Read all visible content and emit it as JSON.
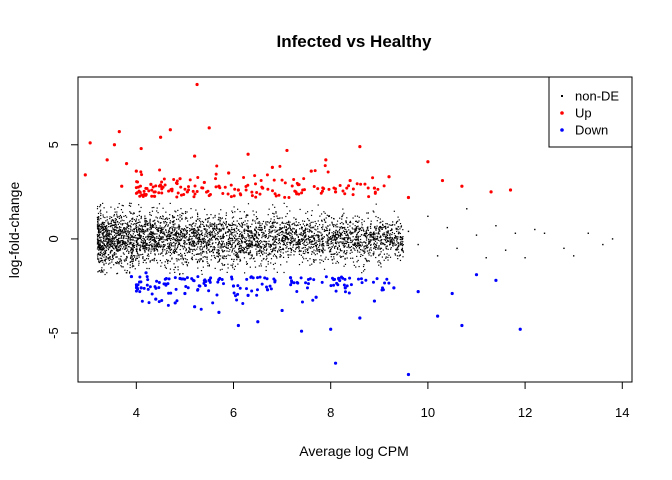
{
  "chart_data": {
    "type": "scatter",
    "title": "Infected vs Healthy",
    "xlabel": "Average log CPM",
    "ylabel": "log-fold-change",
    "xlim": [
      2.8,
      14.2
    ],
    "ylim": [
      -7.6,
      8.6
    ],
    "x_ticks": [
      4,
      6,
      8,
      10,
      12,
      14
    ],
    "y_ticks": [
      -5,
      0,
      5
    ],
    "grid": false,
    "legend_position": "top-right",
    "legend": [
      {
        "label": "non-DE",
        "color": "#000000"
      },
      {
        "label": "Up",
        "color": "#ff0000"
      },
      {
        "label": "Down",
        "color": "#0000ff"
      }
    ],
    "series": [
      {
        "name": "non-DE",
        "color": "#000000",
        "cloud": {
          "x_range": [
            3.2,
            9.5
          ],
          "y_sd": 0.55,
          "y_sd_low_x": 0.75
        },
        "x": [
          3.3,
          3.5,
          3.6,
          9.6,
          9.8,
          10.0,
          10.2,
          10.4,
          10.6,
          10.8,
          11.0,
          11.2,
          11.4,
          11.6,
          11.8,
          12.0,
          12.2,
          12.4,
          12.8,
          13.0,
          13.3,
          13.6,
          13.8
        ],
        "y": [
          -0.9,
          -1.1,
          -1.3,
          0.4,
          -0.3,
          1.2,
          -0.9,
          0.6,
          -0.5,
          1.6,
          0.2,
          -1.0,
          0.7,
          -0.6,
          0.3,
          -1.0,
          0.5,
          0.3,
          -0.5,
          -0.9,
          0.3,
          -0.3,
          0.0
        ]
      },
      {
        "name": "Up",
        "color": "#ff0000",
        "x": [
          2.95,
          3.05,
          3.4,
          3.55,
          3.65,
          3.7,
          3.8,
          4.0,
          4.1,
          4.3,
          4.5,
          4.7,
          4.9,
          5.05,
          5.2,
          5.25,
          5.4,
          5.5,
          5.7,
          5.9,
          6.1,
          6.3,
          6.6,
          6.8,
          7.1,
          7.3,
          7.6,
          7.9,
          8.1,
          8.4,
          8.6,
          8.9,
          9.2,
          9.6,
          10.0,
          10.3,
          10.7,
          11.3,
          11.7
        ],
        "y": [
          3.4,
          5.1,
          4.2,
          5.0,
          5.7,
          2.8,
          4.0,
          3.6,
          4.8,
          2.9,
          5.4,
          5.8,
          3.2,
          2.5,
          4.4,
          8.2,
          3.0,
          5.9,
          2.8,
          3.5,
          2.6,
          4.5,
          2.7,
          3.8,
          4.7,
          2.4,
          3.6,
          4.2,
          2.5,
          3.1,
          4.9,
          2.7,
          3.3,
          2.2,
          4.1,
          3.1,
          2.8,
          2.5,
          2.6
        ]
      },
      {
        "name": "Down",
        "color": "#0000ff",
        "x": [
          3.9,
          4.1,
          4.2,
          4.4,
          4.6,
          4.8,
          4.9,
          5.0,
          5.2,
          5.5,
          5.7,
          6.0,
          6.1,
          6.3,
          6.5,
          6.7,
          7.0,
          7.2,
          7.4,
          7.7,
          8.0,
          8.1,
          8.3,
          8.6,
          8.9,
          9.3,
          9.6,
          9.8,
          10.2,
          10.5,
          10.7,
          11.0,
          11.4,
          11.9
        ],
        "y": [
          -2.0,
          -2.6,
          -1.8,
          -3.2,
          -2.4,
          -3.4,
          -2.1,
          -2.9,
          -3.6,
          -2.2,
          -3.9,
          -2.5,
          -4.6,
          -3.0,
          -4.4,
          -2.7,
          -3.8,
          -2.3,
          -4.9,
          -3.1,
          -4.8,
          -6.6,
          -2.6,
          -4.2,
          -3.3,
          -2.6,
          -7.2,
          -2.8,
          -4.1,
          -2.9,
          -4.6,
          -1.9,
          -2.2,
          -4.8
        ]
      }
    ]
  }
}
